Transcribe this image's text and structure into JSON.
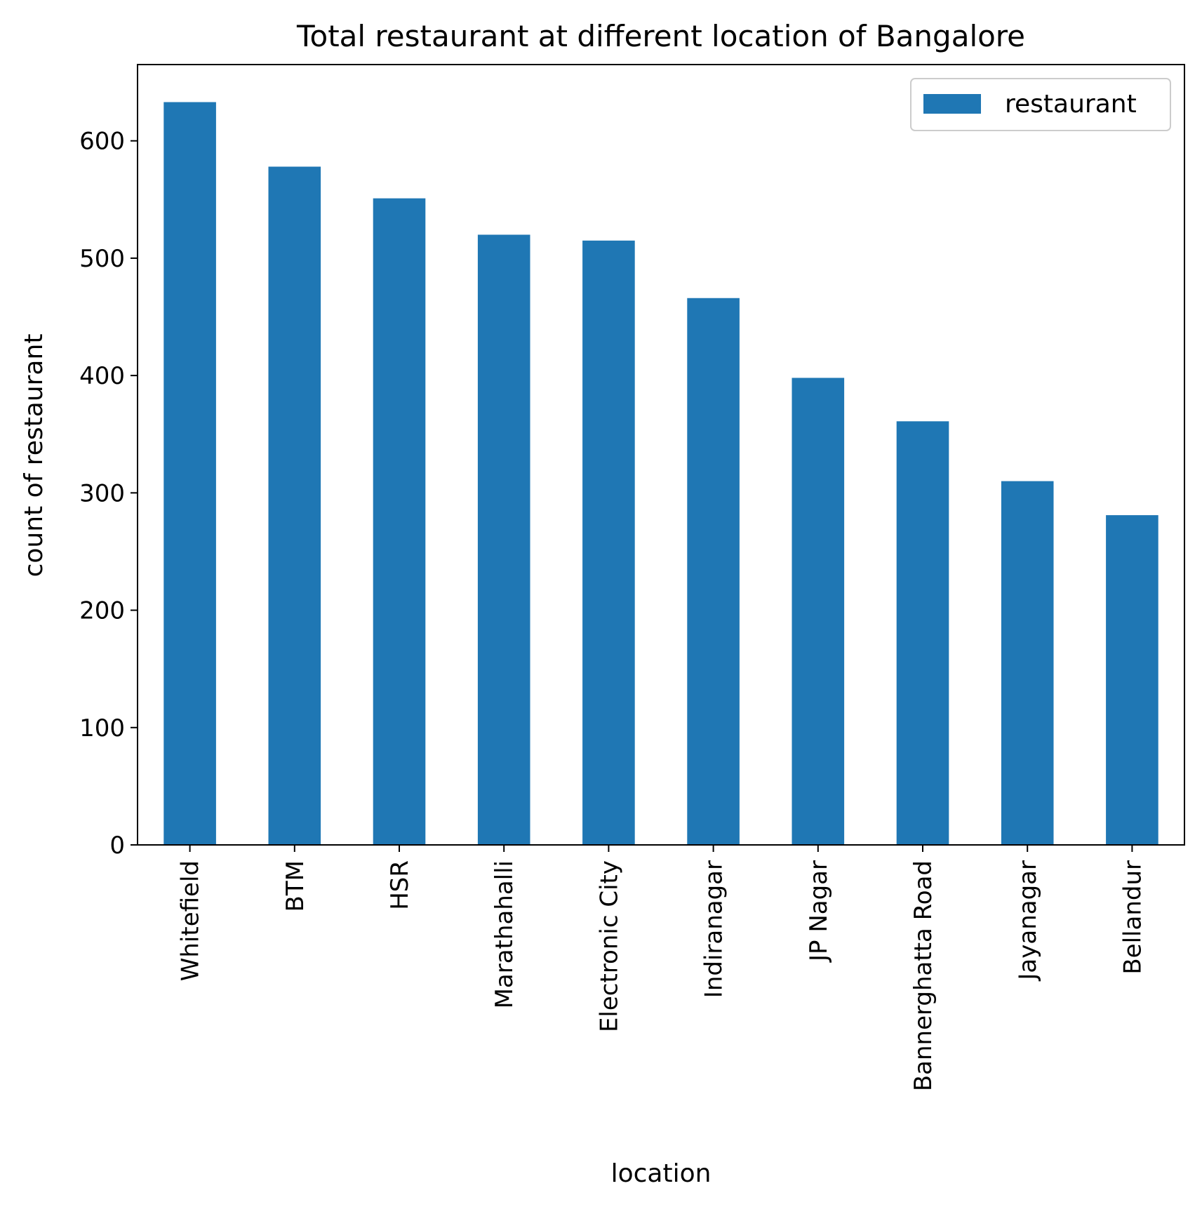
{
  "chart_data": {
    "type": "bar",
    "title": "Total restaurant at different location of Bangalore",
    "xlabel": "location",
    "ylabel": "count of restaurant",
    "categories": [
      "Whitefield",
      "BTM",
      "HSR",
      "Marathahalli",
      "Electronic City",
      "Indiranagar",
      "JP Nagar",
      "Bannerghatta Road",
      "Jayanagar",
      "Bellandur"
    ],
    "series": [
      {
        "name": "restaurant",
        "values": [
          633,
          578,
          551,
          520,
          515,
          466,
          398,
          361,
          310,
          281
        ],
        "color": "#1f77b4"
      }
    ],
    "ylim": [
      0,
      665
    ],
    "yticks": [
      0,
      100,
      200,
      300,
      400,
      500,
      600
    ],
    "grid": false,
    "legend": "top-right"
  }
}
